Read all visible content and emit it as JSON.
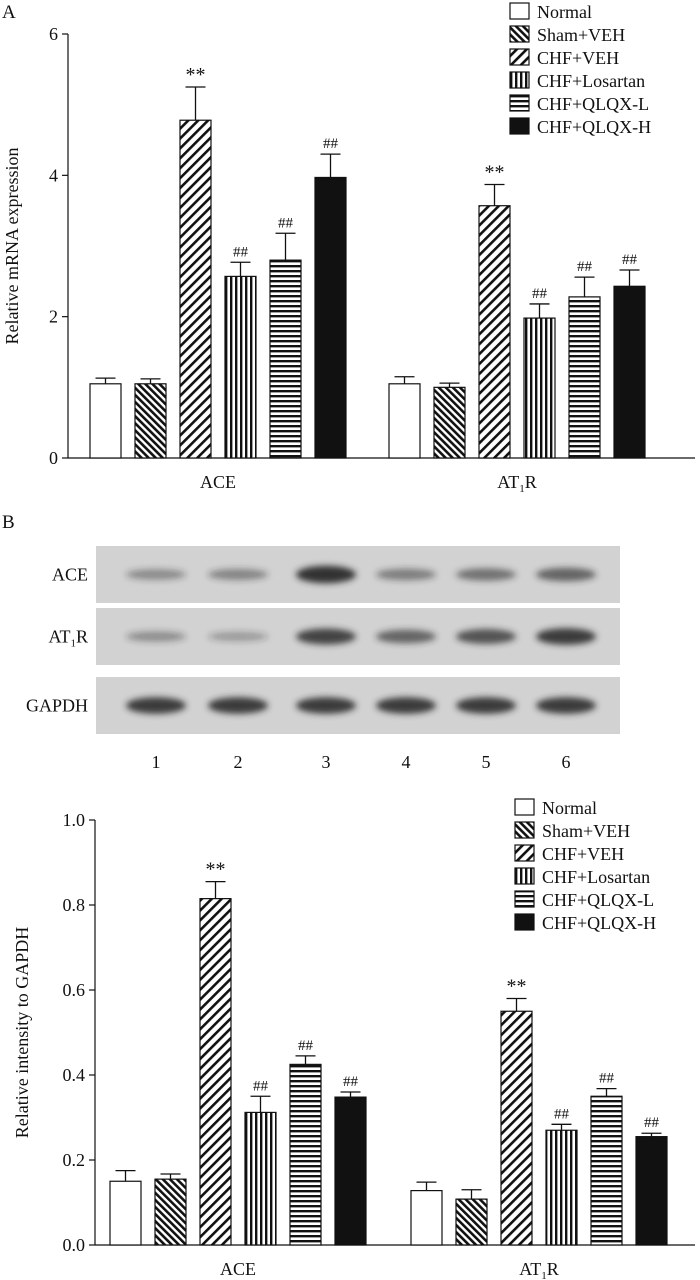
{
  "colors": {
    "ink": "#111111",
    "blot_bg": "#d2d2d2",
    "band": "#2b2b2b"
  },
  "panel_a": {
    "letter": "A",
    "chart_data": {
      "type": "bar",
      "ylabel": "Relative mRNA expression",
      "ylim": [
        0,
        6
      ],
      "yticks": [
        0,
        2,
        4,
        6
      ],
      "categories": [
        "ACE",
        "AT1R"
      ],
      "legend_position": "top-right",
      "series": [
        {
          "name": "Normal",
          "pattern": "white",
          "values": [
            1.05,
            1.05
          ],
          "errors": [
            0.08,
            0.1
          ],
          "annotations": [
            "",
            ""
          ]
        },
        {
          "name": "Sham+VEH",
          "pattern": "diag-dense",
          "values": [
            1.05,
            1.0
          ],
          "errors": [
            0.07,
            0.06
          ],
          "annotations": [
            "",
            ""
          ]
        },
        {
          "name": "CHF+VEH",
          "pattern": "diag",
          "values": [
            4.78,
            3.57
          ],
          "errors": [
            0.47,
            0.3
          ],
          "annotations": [
            "**",
            "**"
          ]
        },
        {
          "name": "CHF+Losartan",
          "pattern": "vertical",
          "values": [
            2.57,
            1.98
          ],
          "errors": [
            0.2,
            0.2
          ],
          "annotations": [
            "##",
            "##"
          ]
        },
        {
          "name": "CHF+QLQX-L",
          "pattern": "horizontal",
          "values": [
            2.8,
            2.28
          ],
          "errors": [
            0.38,
            0.28
          ],
          "annotations": [
            "##",
            "##"
          ]
        },
        {
          "name": "CHF+QLQX-H",
          "pattern": "black",
          "values": [
            3.97,
            2.43
          ],
          "errors": [
            0.33,
            0.23
          ],
          "annotations": [
            "##",
            "##"
          ]
        }
      ]
    }
  },
  "panel_b": {
    "letter": "B",
    "blot": {
      "rows": [
        {
          "label": "ACE",
          "intensities": [
            0.25,
            0.3,
            0.95,
            0.35,
            0.45,
            0.55
          ]
        },
        {
          "label": "AT1R",
          "intensities": [
            0.22,
            0.12,
            0.8,
            0.55,
            0.7,
            0.85
          ]
        },
        {
          "label": "GAPDH",
          "intensities": [
            0.85,
            0.85,
            0.85,
            0.85,
            0.85,
            0.85
          ]
        }
      ],
      "lanes": [
        "1",
        "2",
        "3",
        "4",
        "5",
        "6"
      ]
    },
    "chart_data": {
      "type": "bar",
      "ylabel": "Relative intensity to GAPDH",
      "ylim": [
        0,
        1.0
      ],
      "yticks": [
        "0.0",
        "0.2",
        "0.4",
        "0.6",
        "0.8",
        "1.0"
      ],
      "categories": [
        "ACE",
        "AT1R"
      ],
      "legend_position": "top-right",
      "series": [
        {
          "name": "Normal",
          "pattern": "white",
          "values": [
            0.15,
            0.128
          ],
          "errors": [
            0.025,
            0.02
          ],
          "annotations": [
            "",
            ""
          ]
        },
        {
          "name": "Sham+VEH",
          "pattern": "diag-dense",
          "values": [
            0.155,
            0.108
          ],
          "errors": [
            0.012,
            0.022
          ],
          "annotations": [
            "",
            ""
          ]
        },
        {
          "name": "CHF+VEH",
          "pattern": "diag",
          "values": [
            0.815,
            0.55
          ],
          "errors": [
            0.04,
            0.03
          ],
          "annotations": [
            "**",
            "**"
          ]
        },
        {
          "name": "CHF+Losartan",
          "pattern": "vertical",
          "values": [
            0.312,
            0.27
          ],
          "errors": [
            0.038,
            0.014
          ],
          "annotations": [
            "##",
            "##"
          ]
        },
        {
          "name": "CHF+QLQX-L",
          "pattern": "horizontal",
          "values": [
            0.425,
            0.35
          ],
          "errors": [
            0.02,
            0.018
          ],
          "annotations": [
            "##",
            "##"
          ]
        },
        {
          "name": "CHF+QLQX-H",
          "pattern": "black",
          "values": [
            0.348,
            0.255
          ],
          "errors": [
            0.012,
            0.008
          ],
          "annotations": [
            "##",
            "##"
          ]
        }
      ]
    }
  }
}
